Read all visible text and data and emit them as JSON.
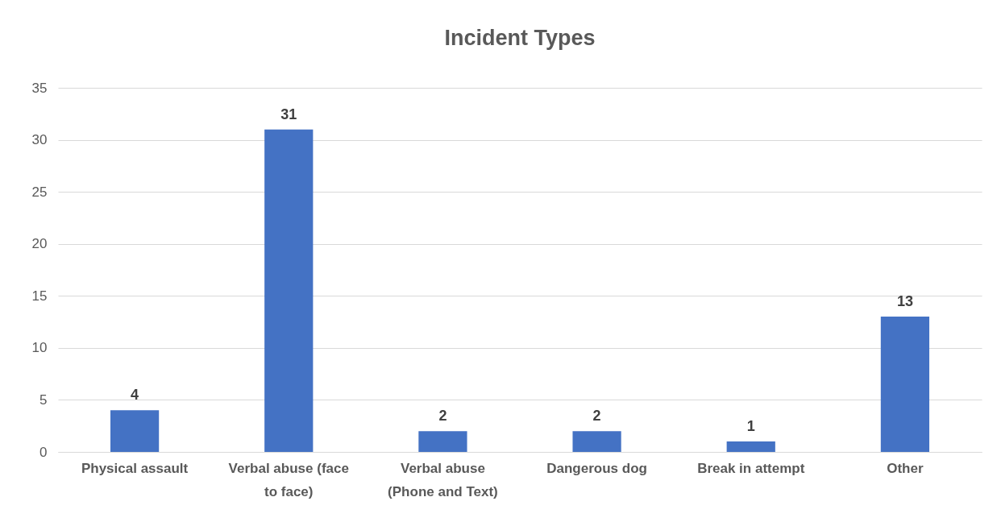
{
  "chart_data": {
    "type": "bar",
    "title": "Incident Types",
    "categories": [
      "Physical assault",
      "Verbal abuse (face to face)",
      "Verbal abuse (Phone and Text)",
      "Dangerous dog",
      "Break in attempt",
      "Other"
    ],
    "values": [
      4,
      31,
      2,
      2,
      1,
      13
    ],
    "color": "#4472c4",
    "ylim": [
      0,
      35
    ],
    "yticks": [
      0,
      5,
      10,
      15,
      20,
      25,
      30,
      35
    ],
    "grid": "y",
    "data_labels": true
  }
}
